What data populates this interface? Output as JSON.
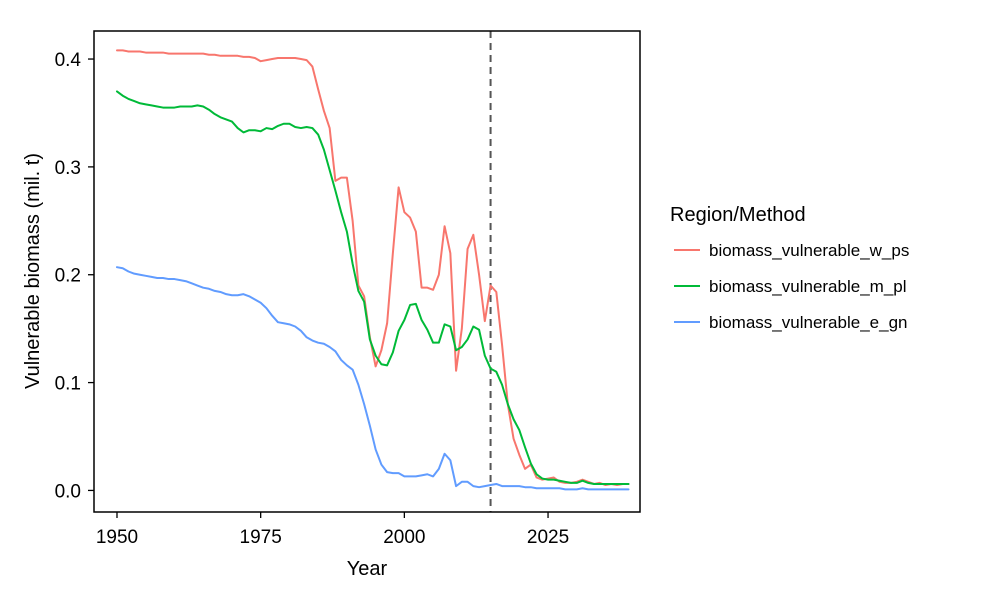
{
  "chart_data": {
    "type": "line",
    "xlabel": "Year",
    "ylabel": "Vulnerable biomass (mil. t)",
    "xlim": [
      1946,
      2041
    ],
    "ylim": [
      -0.02,
      0.426
    ],
    "x_ticks": [
      1950,
      1975,
      2000,
      2025
    ],
    "y_ticks": [
      0.0,
      0.1,
      0.2,
      0.3,
      0.4
    ],
    "y_tick_labels": [
      "0.0",
      "0.1",
      "0.2",
      "0.3",
      "0.4"
    ],
    "grid": false,
    "reference_line": {
      "x": 2015,
      "style": "dashed",
      "color": "#555555"
    },
    "legend": {
      "title": "Region/Method",
      "position": "right"
    },
    "series": [
      {
        "name": "biomass_vulnerable_w_ps",
        "color": "#F8766D",
        "x": [
          1950,
          1951,
          1952,
          1953,
          1954,
          1955,
          1956,
          1957,
          1958,
          1959,
          1960,
          1961,
          1962,
          1963,
          1964,
          1965,
          1966,
          1967,
          1968,
          1969,
          1970,
          1971,
          1972,
          1973,
          1974,
          1975,
          1976,
          1977,
          1978,
          1979,
          1980,
          1981,
          1982,
          1983,
          1984,
          1985,
          1986,
          1987,
          1988,
          1989,
          1990,
          1991,
          1992,
          1993,
          1994,
          1995,
          1996,
          1997,
          1998,
          1999,
          2000,
          2001,
          2002,
          2003,
          2004,
          2005,
          2006,
          2007,
          2008,
          2009,
          2010,
          2011,
          2012,
          2013,
          2014,
          2015,
          2016,
          2017,
          2018,
          2019,
          2020,
          2021,
          2022,
          2023,
          2024,
          2025,
          2026,
          2027,
          2028,
          2029,
          2030,
          2031,
          2032,
          2033,
          2034,
          2035,
          2036,
          2037,
          2038,
          2039
        ],
        "y": [
          0.408,
          0.408,
          0.407,
          0.407,
          0.407,
          0.406,
          0.406,
          0.406,
          0.406,
          0.405,
          0.405,
          0.405,
          0.405,
          0.405,
          0.405,
          0.405,
          0.404,
          0.404,
          0.403,
          0.403,
          0.403,
          0.403,
          0.402,
          0.402,
          0.401,
          0.398,
          0.399,
          0.4,
          0.401,
          0.401,
          0.401,
          0.401,
          0.4,
          0.399,
          0.393,
          0.372,
          0.352,
          0.336,
          0.287,
          0.29,
          0.29,
          0.25,
          0.19,
          0.18,
          0.142,
          0.115,
          0.13,
          0.155,
          0.22,
          0.281,
          0.258,
          0.253,
          0.24,
          0.188,
          0.188,
          0.186,
          0.2,
          0.245,
          0.22,
          0.111,
          0.15,
          0.224,
          0.237,
          0.2,
          0.157,
          0.19,
          0.184,
          0.135,
          0.08,
          0.048,
          0.033,
          0.02,
          0.024,
          0.012,
          0.01,
          0.011,
          0.012,
          0.008,
          0.007,
          0.007,
          0.008,
          0.01,
          0.008,
          0.006,
          0.007,
          0.005,
          0.006,
          0.005,
          0.006,
          0.006
        ]
      },
      {
        "name": "biomass_vulnerable_m_pl",
        "color": "#00BA38",
        "x": [
          1950,
          1951,
          1952,
          1953,
          1954,
          1955,
          1956,
          1957,
          1958,
          1959,
          1960,
          1961,
          1962,
          1963,
          1964,
          1965,
          1966,
          1967,
          1968,
          1969,
          1970,
          1971,
          1972,
          1973,
          1974,
          1975,
          1976,
          1977,
          1978,
          1979,
          1980,
          1981,
          1982,
          1983,
          1984,
          1985,
          1986,
          1987,
          1988,
          1989,
          1990,
          1991,
          1992,
          1993,
          1994,
          1995,
          1996,
          1997,
          1998,
          1999,
          2000,
          2001,
          2002,
          2003,
          2004,
          2005,
          2006,
          2007,
          2008,
          2009,
          2010,
          2011,
          2012,
          2013,
          2014,
          2015,
          2016,
          2017,
          2018,
          2019,
          2020,
          2021,
          2022,
          2023,
          2024,
          2025,
          2026,
          2027,
          2028,
          2029,
          2030,
          2031,
          2032,
          2033,
          2034,
          2035,
          2036,
          2037,
          2038,
          2039
        ],
        "y": [
          0.37,
          0.366,
          0.363,
          0.361,
          0.359,
          0.358,
          0.357,
          0.356,
          0.355,
          0.355,
          0.355,
          0.356,
          0.356,
          0.356,
          0.357,
          0.356,
          0.353,
          0.349,
          0.346,
          0.344,
          0.342,
          0.336,
          0.332,
          0.334,
          0.334,
          0.333,
          0.336,
          0.335,
          0.338,
          0.34,
          0.34,
          0.337,
          0.336,
          0.337,
          0.336,
          0.33,
          0.316,
          0.297,
          0.278,
          0.258,
          0.24,
          0.21,
          0.185,
          0.175,
          0.14,
          0.125,
          0.117,
          0.116,
          0.128,
          0.148,
          0.158,
          0.172,
          0.173,
          0.158,
          0.149,
          0.137,
          0.137,
          0.154,
          0.152,
          0.13,
          0.133,
          0.14,
          0.152,
          0.149,
          0.125,
          0.113,
          0.11,
          0.098,
          0.08,
          0.066,
          0.056,
          0.04,
          0.025,
          0.015,
          0.011,
          0.01,
          0.01,
          0.009,
          0.008,
          0.007,
          0.007,
          0.009,
          0.007,
          0.006,
          0.006,
          0.006,
          0.006,
          0.006,
          0.006,
          0.006
        ]
      },
      {
        "name": "biomass_vulnerable_e_gn",
        "color": "#619CFF",
        "x": [
          1950,
          1951,
          1952,
          1953,
          1954,
          1955,
          1956,
          1957,
          1958,
          1959,
          1960,
          1961,
          1962,
          1963,
          1964,
          1965,
          1966,
          1967,
          1968,
          1969,
          1970,
          1971,
          1972,
          1973,
          1974,
          1975,
          1976,
          1977,
          1978,
          1979,
          1980,
          1981,
          1982,
          1983,
          1984,
          1985,
          1986,
          1987,
          1988,
          1989,
          1990,
          1991,
          1992,
          1993,
          1994,
          1995,
          1996,
          1997,
          1998,
          1999,
          2000,
          2001,
          2002,
          2003,
          2004,
          2005,
          2006,
          2007,
          2008,
          2009,
          2010,
          2011,
          2012,
          2013,
          2014,
          2015,
          2016,
          2017,
          2018,
          2019,
          2020,
          2021,
          2022,
          2023,
          2024,
          2025,
          2026,
          2027,
          2028,
          2029,
          2030,
          2031,
          2032,
          2033,
          2034,
          2035,
          2036,
          2037,
          2038,
          2039
        ],
        "y": [
          0.207,
          0.206,
          0.203,
          0.201,
          0.2,
          0.199,
          0.198,
          0.197,
          0.197,
          0.196,
          0.196,
          0.195,
          0.194,
          0.192,
          0.19,
          0.188,
          0.187,
          0.185,
          0.184,
          0.182,
          0.181,
          0.181,
          0.182,
          0.18,
          0.177,
          0.174,
          0.169,
          0.162,
          0.156,
          0.155,
          0.154,
          0.152,
          0.148,
          0.142,
          0.139,
          0.137,
          0.136,
          0.133,
          0.129,
          0.121,
          0.116,
          0.112,
          0.098,
          0.08,
          0.06,
          0.038,
          0.024,
          0.017,
          0.016,
          0.016,
          0.013,
          0.013,
          0.013,
          0.014,
          0.015,
          0.013,
          0.02,
          0.034,
          0.028,
          0.004,
          0.008,
          0.008,
          0.004,
          0.003,
          0.004,
          0.005,
          0.006,
          0.004,
          0.004,
          0.004,
          0.004,
          0.003,
          0.003,
          0.002,
          0.002,
          0.002,
          0.002,
          0.002,
          0.001,
          0.001,
          0.001,
          0.002,
          0.001,
          0.001,
          0.001,
          0.001,
          0.001,
          0.001,
          0.001,
          0.001
        ]
      }
    ]
  }
}
